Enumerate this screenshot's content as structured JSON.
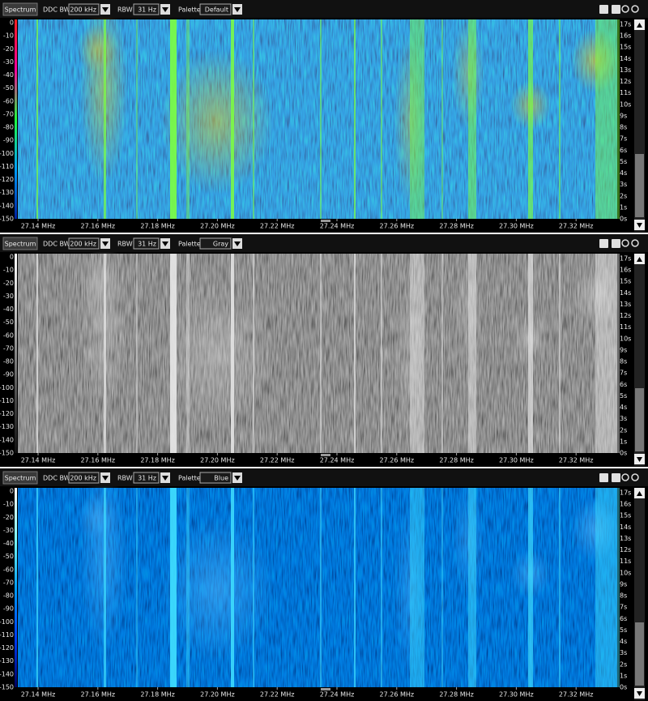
{
  "panels": [
    {
      "tab": "Spectrum",
      "ddc_bw_label": "DDC BW",
      "ddc_bw": "200 kHz",
      "rbw_label": "RBW",
      "rbw": "31 Hz",
      "palette_label": "Palette",
      "palette": "Default",
      "level_ticks": [
        0,
        -10,
        -20,
        -30,
        -40,
        -50,
        -60,
        -70,
        -80,
        -90,
        -100,
        -110,
        -120,
        -130,
        -140,
        -150
      ],
      "time_ticks": [
        "17s",
        "16s",
        "15s",
        "14s",
        "13s",
        "12s",
        "11s",
        "10s",
        "9s",
        "8s",
        "7s",
        "6s",
        "5s",
        "4s",
        "3s",
        "2s",
        "1s",
        "0s"
      ],
      "freq_ticks": [
        "27.14 MHz",
        "27.16 MHz",
        "27.18 MHz",
        "27.20 MHz",
        "27.22 MHz",
        "27.24 MHz",
        "27.26 MHz",
        "27.28 MHz",
        "27.30 MHz",
        "27.32 MHz"
      ]
    },
    {
      "tab": "Spectrum",
      "ddc_bw_label": "DDC BW",
      "ddc_bw": "200 kHz",
      "rbw_label": "RBW",
      "rbw": "31 Hz",
      "palette_label": "Palette",
      "palette": "Gray",
      "level_ticks": [
        0,
        -10,
        -20,
        -30,
        -40,
        -50,
        -60,
        -70,
        -80,
        -90,
        -100,
        -110,
        -120,
        -130,
        -140,
        -150
      ],
      "time_ticks": [
        "17s",
        "16s",
        "15s",
        "14s",
        "13s",
        "12s",
        "11s",
        "10s",
        "9s",
        "8s",
        "7s",
        "6s",
        "5s",
        "4s",
        "3s",
        "2s",
        "1s",
        "0s"
      ],
      "freq_ticks": [
        "27.14 MHz",
        "27.16 MHz",
        "27.18 MHz",
        "27.20 MHz",
        "27.22 MHz",
        "27.24 MHz",
        "27.26 MHz",
        "27.28 MHz",
        "27.30 MHz",
        "27.32 MHz"
      ]
    },
    {
      "tab": "Spectrum",
      "ddc_bw_label": "DDC BW",
      "ddc_bw": "200 kHz",
      "rbw_label": "RBW",
      "rbw": "31 Hz",
      "palette_label": "Palette",
      "palette": "Blue",
      "level_ticks": [
        0,
        -10,
        -20,
        -30,
        -40,
        -50,
        -60,
        -70,
        -80,
        -90,
        -100,
        -110,
        -120,
        -130,
        -140,
        -150
      ],
      "time_ticks": [
        "17s",
        "16s",
        "15s",
        "14s",
        "13s",
        "12s",
        "11s",
        "10s",
        "9s",
        "8s",
        "7s",
        "6s",
        "5s",
        "4s",
        "3s",
        "2s",
        "1s",
        "0s"
      ],
      "freq_ticks": [
        "27.14 MHz",
        "27.16 MHz",
        "27.18 MHz",
        "27.20 MHz",
        "27.22 MHz",
        "27.24 MHz",
        "27.26 MHz",
        "27.28 MHz",
        "27.30 MHz",
        "27.32 MHz"
      ]
    }
  ]
}
